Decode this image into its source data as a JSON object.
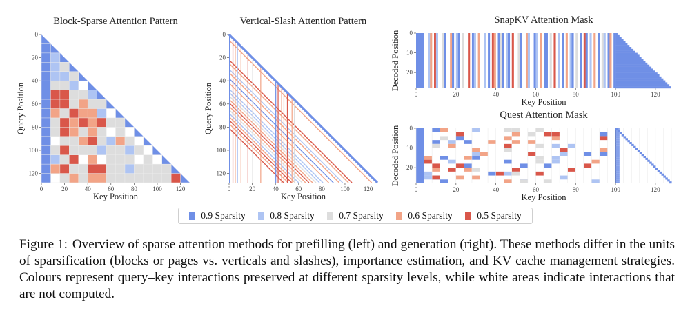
{
  "colors": {
    "s09": "#6f8fe6",
    "s08": "#aec4f3",
    "s07": "#dddddd",
    "s06": "#f2a487",
    "s05": "#d9574a"
  },
  "legend": [
    {
      "label": "0.9 Sparsity",
      "color_key": "s09"
    },
    {
      "label": "0.8 Sparsity",
      "color_key": "s08"
    },
    {
      "label": "0.7 Sparsity",
      "color_key": "s07"
    },
    {
      "label": "0.6 Sparsity",
      "color_key": "s06"
    },
    {
      "label": "0.5 Sparsity",
      "color_key": "s05"
    }
  ],
  "chart_data": [
    {
      "type": "heatmap",
      "title": "Block-Sparse Attention Pattern",
      "xlabel": "Key Position",
      "ylabel": "Query Position",
      "x_range": [
        0,
        128
      ],
      "y_range": [
        0,
        128
      ],
      "x_ticks": [
        "0",
        "20",
        "40",
        "60",
        "80",
        "100",
        "120"
      ],
      "y_ticks": [
        "0",
        "20",
        "40",
        "60",
        "80",
        "100",
        "120"
      ],
      "block_size": 8,
      "grid": [
        [
          "s09"
        ],
        [
          "s09",
          "s09"
        ],
        [
          "s09",
          "s08",
          "s09"
        ],
        [
          "s09",
          "s08",
          "s07",
          "s09"
        ],
        [
          "s09",
          "s08",
          "s08",
          "s07",
          "s09"
        ],
        [
          "s09",
          "s07",
          "s07",
          "s08",
          "w",
          "s09"
        ],
        [
          "s09",
          "s05",
          "s05",
          "s07",
          "s07",
          "s08",
          "s09"
        ],
        [
          "s09",
          "s05",
          "s05",
          "s07",
          "s06",
          "s07",
          "s07",
          "s09"
        ],
        [
          "s09",
          "s06",
          "s07",
          "s05",
          "s06",
          "s06",
          "s08",
          "w",
          "s09"
        ],
        [
          "s09",
          "s07",
          "s05",
          "s06",
          "s05",
          "s06",
          "s05",
          "s07",
          "s07",
          "s09"
        ],
        [
          "s09",
          "s07",
          "s05",
          "s06",
          "s07",
          "s06",
          "s07",
          "w",
          "s07",
          "w",
          "s09"
        ],
        [
          "s09",
          "w",
          "s07",
          "s07",
          "s06",
          "s05",
          "s07",
          "s08",
          "s06",
          "s07",
          "w",
          "s09"
        ],
        [
          "s09",
          "s07",
          "s05",
          "s07",
          "s07",
          "s07",
          "s08",
          "s07",
          "s07",
          "s08",
          "s07",
          "w",
          "s09"
        ],
        [
          "s09",
          "s08",
          "s07",
          "s05",
          "w",
          "s06",
          "w",
          "s07",
          "s07",
          "s07",
          "w",
          "s07",
          "w",
          "s09"
        ],
        [
          "s09",
          "s06",
          "s05",
          "s07",
          "s07",
          "s05",
          "s05",
          "s07",
          "s07",
          "s08",
          "s07",
          "s07",
          "s07",
          "s07",
          "s09"
        ],
        [
          "s09",
          "w",
          "s07",
          "s06",
          "s07",
          "s06",
          "s06",
          "s07",
          "s07",
          "s07",
          "s07",
          "s07",
          "s07",
          "s07",
          "s05",
          "s09"
        ]
      ]
    },
    {
      "type": "heatmap",
      "title": "Vertical-Slash Attention Pattern",
      "xlabel": "Key Position",
      "ylabel": "Query Position",
      "x_range": [
        0,
        128
      ],
      "y_range": [
        0,
        128
      ],
      "x_ticks": [
        "0",
        "20",
        "40",
        "60",
        "80",
        "100",
        "120"
      ],
      "y_ticks": [
        "0",
        "20",
        "40",
        "60",
        "80",
        "100",
        "120"
      ],
      "verticals": [
        {
          "x": 0,
          "color_key": "s09"
        },
        {
          "x": 3,
          "color_key": "s05"
        },
        {
          "x": 5,
          "color_key": "s06"
        },
        {
          "x": 7,
          "color_key": "s08"
        },
        {
          "x": 10,
          "color_key": "s06"
        },
        {
          "x": 16,
          "color_key": "s05"
        },
        {
          "x": 20,
          "color_key": "s07"
        },
        {
          "x": 27,
          "color_key": "s06"
        },
        {
          "x": 40,
          "color_key": "s09"
        },
        {
          "x": 42,
          "color_key": "s05"
        },
        {
          "x": 45,
          "color_key": "s06"
        },
        {
          "x": 47,
          "color_key": "s06"
        },
        {
          "x": 50,
          "color_key": "s05"
        },
        {
          "x": 54,
          "color_key": "s06"
        },
        {
          "x": 56,
          "color_key": "s07"
        }
      ],
      "slashes": [
        {
          "offset": 0,
          "color_key": "s09"
        },
        {
          "offset": 5,
          "color_key": "s06"
        },
        {
          "offset": 22,
          "color_key": "s05"
        },
        {
          "offset": 25,
          "color_key": "s06"
        },
        {
          "offset": 30,
          "color_key": "s08"
        },
        {
          "offset": 33,
          "color_key": "s06"
        },
        {
          "offset": 38,
          "color_key": "s09"
        },
        {
          "offset": 42,
          "color_key": "s06"
        },
        {
          "offset": 47,
          "color_key": "s08"
        },
        {
          "offset": 50,
          "color_key": "s08"
        },
        {
          "offset": 53,
          "color_key": "s07"
        },
        {
          "offset": 56,
          "color_key": "s06"
        },
        {
          "offset": 59,
          "color_key": "s05"
        },
        {
          "offset": 62,
          "color_key": "s06"
        },
        {
          "offset": 65,
          "color_key": "s07"
        },
        {
          "offset": 68,
          "color_key": "s08"
        },
        {
          "offset": 71,
          "color_key": "s06"
        },
        {
          "offset": 74,
          "color_key": "s05"
        },
        {
          "offset": 77,
          "color_key": "s06"
        },
        {
          "offset": 81,
          "color_key": "s05"
        }
      ]
    },
    {
      "type": "heatmap",
      "title": "SnapKV Attention Mask",
      "xlabel": "Key Position",
      "ylabel": "Decoded Position",
      "x_range": [
        0,
        128
      ],
      "y_range": [
        0,
        28
      ],
      "x_ticks": [
        "0",
        "20",
        "40",
        "60",
        "80",
        "100",
        "120"
      ],
      "y_ticks": [
        "0",
        "10",
        "20"
      ],
      "prefill_length": 100,
      "columns": [
        {
          "x": 0,
          "color_key": "s09"
        },
        {
          "x": 1,
          "color_key": "s09"
        },
        {
          "x": 2,
          "color_key": "s09"
        },
        {
          "x": 3,
          "color_key": "s09"
        },
        {
          "x": 6,
          "color_key": "s08"
        },
        {
          "x": 7,
          "color_key": "s06"
        },
        {
          "x": 9,
          "color_key": "s05"
        },
        {
          "x": 10,
          "color_key": "s08"
        },
        {
          "x": 13,
          "color_key": "s07"
        },
        {
          "x": 14,
          "color_key": "s09"
        },
        {
          "x": 17,
          "color_key": "s06"
        },
        {
          "x": 18,
          "color_key": "s09"
        },
        {
          "x": 20,
          "color_key": "s08"
        },
        {
          "x": 21,
          "color_key": "s09"
        },
        {
          "x": 23,
          "color_key": "s07"
        },
        {
          "x": 26,
          "color_key": "s05"
        },
        {
          "x": 28,
          "color_key": "s09"
        },
        {
          "x": 29,
          "color_key": "s08"
        },
        {
          "x": 31,
          "color_key": "s06"
        },
        {
          "x": 34,
          "color_key": "s08"
        },
        {
          "x": 36,
          "color_key": "s09"
        },
        {
          "x": 38,
          "color_key": "s05"
        },
        {
          "x": 39,
          "color_key": "s06"
        },
        {
          "x": 41,
          "color_key": "s09"
        },
        {
          "x": 42,
          "color_key": "s07"
        },
        {
          "x": 43,
          "color_key": "s09"
        },
        {
          "x": 45,
          "color_key": "s08"
        },
        {
          "x": 46,
          "color_key": "s09"
        },
        {
          "x": 48,
          "color_key": "s05"
        },
        {
          "x": 51,
          "color_key": "s07"
        },
        {
          "x": 52,
          "color_key": "s09"
        },
        {
          "x": 55,
          "color_key": "s06"
        },
        {
          "x": 56,
          "color_key": "s08"
        },
        {
          "x": 59,
          "color_key": "s09"
        },
        {
          "x": 60,
          "color_key": "s08"
        },
        {
          "x": 62,
          "color_key": "s06"
        },
        {
          "x": 64,
          "color_key": "s09"
        },
        {
          "x": 65,
          "color_key": "s09"
        },
        {
          "x": 67,
          "color_key": "s07"
        },
        {
          "x": 69,
          "color_key": "s05"
        },
        {
          "x": 71,
          "color_key": "s08"
        },
        {
          "x": 73,
          "color_key": "s09"
        },
        {
          "x": 75,
          "color_key": "s06"
        },
        {
          "x": 77,
          "color_key": "s08"
        },
        {
          "x": 78,
          "color_key": "s09"
        },
        {
          "x": 80,
          "color_key": "s07"
        },
        {
          "x": 82,
          "color_key": "s09"
        },
        {
          "x": 84,
          "color_key": "s05"
        },
        {
          "x": 85,
          "color_key": "s09"
        },
        {
          "x": 87,
          "color_key": "s08"
        },
        {
          "x": 89,
          "color_key": "s06"
        },
        {
          "x": 91,
          "color_key": "s09"
        },
        {
          "x": 93,
          "color_key": "s07"
        },
        {
          "x": 94,
          "color_key": "s08"
        },
        {
          "x": 96,
          "color_key": "s09"
        },
        {
          "x": 97,
          "color_key": "s06"
        },
        {
          "x": 99,
          "color_key": "s09"
        }
      ]
    },
    {
      "type": "heatmap",
      "title": "Quest Attention Mask",
      "xlabel": "Key Position",
      "ylabel": "Decoded Position",
      "x_range": [
        0,
        128
      ],
      "y_range": [
        0,
        28
      ],
      "x_ticks": [
        "0",
        "20",
        "40",
        "60",
        "80",
        "100",
        "120"
      ],
      "y_ticks": [
        "0",
        "10",
        "20"
      ],
      "prefill_length": 100,
      "page_size": 4,
      "pages_per_row": 6
    }
  ],
  "caption": {
    "label": "Figure 1:",
    "text": "Overview of sparse attention methods for prefilling (left) and generation (right). These methods differ in the units of sparsification (blocks or pages vs. verticals and slashes), importance estimation, and KV cache management strategies. Colours represent query–key interactions preserved at different sparsity levels, while white areas indicate interactions that are not computed."
  }
}
